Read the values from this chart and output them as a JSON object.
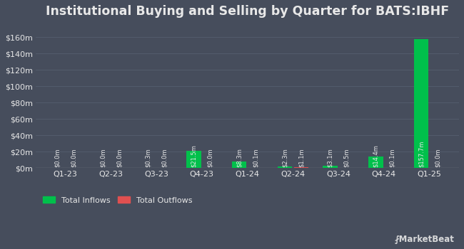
{
  "title": "Institutional Buying and Selling by Quarter for BATS:IBHF",
  "quarters": [
    "Q1-23",
    "Q2-23",
    "Q3-23",
    "Q4-23",
    "Q1-24",
    "Q2-24",
    "Q3-24",
    "Q4-24",
    "Q1-25"
  ],
  "inflows": [
    0.0,
    0.0,
    0.3,
    21.5,
    8.3,
    2.3,
    3.1,
    14.4,
    157.7
  ],
  "outflows": [
    0.0,
    0.0,
    0.0,
    0.0,
    0.1,
    1.1,
    0.5,
    0.1,
    0.0
  ],
  "inflow_labels": [
    "$0.0m",
    "$0.0m",
    "$0.3m",
    "$21.5m",
    "$8.3m",
    "$2.3m",
    "$3.1m",
    "$14.4m",
    "$157.7m"
  ],
  "outflow_labels": [
    "$0.0m",
    "$0.0m",
    "$0.0m",
    "$0.0m",
    "$0.1m",
    "$1.1m",
    "$0.5m",
    "$0.1m",
    "$0.0m"
  ],
  "inflow_color": "#00c04b",
  "outflow_color": "#e05050",
  "bg_color": "#464d5c",
  "grid_color": "#555e6e",
  "text_color": "#e8e8e8",
  "label_fontsize": 6.0,
  "title_fontsize": 12.5,
  "tick_fontsize": 8.0,
  "legend_fontsize": 8.0,
  "ylim": [
    0,
    175
  ],
  "yticks": [
    0,
    20,
    40,
    60,
    80,
    100,
    120,
    140,
    160
  ],
  "bar_width": 0.32,
  "bar_gap": 0.04
}
